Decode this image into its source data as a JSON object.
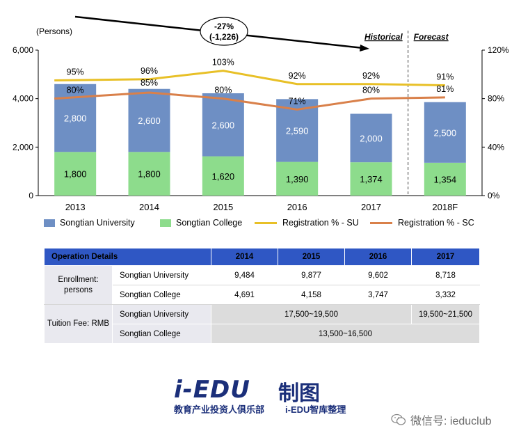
{
  "chart_data": {
    "type": "bar",
    "stacked": true,
    "unit_label": "(Persons)",
    "categories": [
      "2013",
      "2014",
      "2015",
      "2016",
      "2017",
      "2018F"
    ],
    "series": [
      {
        "name": "Songtian College",
        "color": "#8ddc8c",
        "values": [
          1800,
          1800,
          1620,
          1390,
          1374,
          1354
        ],
        "labels": [
          "1,800",
          "1,800",
          "1,620",
          "1,390",
          "1,374",
          "1,354"
        ]
      },
      {
        "name": "Songtian University",
        "color": "#6e8fc4",
        "values": [
          2800,
          2600,
          2600,
          2590,
          2000,
          2500
        ],
        "labels": [
          "2,800",
          "2,600",
          "2,600",
          "2,590",
          "2,000",
          "2,500"
        ]
      }
    ],
    "lines": [
      {
        "name": "Registration % - SU",
        "color": "#e8c027",
        "values": [
          95,
          96,
          103,
          92,
          92,
          91
        ],
        "labels": [
          "95%",
          "96%",
          "103%",
          "92%",
          "92%",
          "91%"
        ]
      },
      {
        "name": "Registration % - SC",
        "color": "#d9804a",
        "values": [
          80,
          85,
          80,
          71,
          80,
          81
        ],
        "labels": [
          "80%",
          "85%",
          "80%",
          "71%",
          "80%",
          "81%"
        ]
      }
    ],
    "ylim_left": [
      0,
      6000
    ],
    "yticks_left": [
      "0",
      "2,000",
      "4,000",
      "6,000"
    ],
    "ylim_right": [
      0,
      120
    ],
    "yticks_right": [
      "0%",
      "40%",
      "80%",
      "120%"
    ],
    "annotation": {
      "line1": "-27%",
      "line2": "(-1,226)"
    },
    "section_labels": {
      "historical": "Historical",
      "forecast": "Forecast"
    },
    "legend_position": "bottom"
  },
  "legend": {
    "items": [
      {
        "label": "Songtian University",
        "color": "#6e8fc4",
        "kind": "box"
      },
      {
        "label": "Songtian College",
        "color": "#8ddc8c",
        "kind": "box"
      },
      {
        "label": "Registration % - SU",
        "color": "#e8c027",
        "kind": "line"
      },
      {
        "label": "Registration % - SC",
        "color": "#d9804a",
        "kind": "line"
      }
    ]
  },
  "table": {
    "header": [
      "Operation Details",
      "2014",
      "2015",
      "2016",
      "2017"
    ],
    "enrollment_label_1": "Enrollment:",
    "enrollment_label_2": "persons",
    "tuition_label": "Tuition Fee: RMB",
    "rows": [
      {
        "name": "Songtian University",
        "values": [
          "9,484",
          "9,877",
          "9,602",
          "8,718"
        ]
      },
      {
        "name": "Songtian College",
        "values": [
          "4,691",
          "4,158",
          "3,747",
          "3,332"
        ]
      }
    ],
    "tuition_su_name": "Songtian University",
    "tuition_su_2014_2016": "17,500~19,500",
    "tuition_su_2017": "19,500~21,500",
    "tuition_sc_name": "Songtian College",
    "tuition_sc_all": "13,500~16,500"
  },
  "logo": {
    "brand": "i-EDU",
    "brand_cn": "制图",
    "sub_left": "教育产业投资人俱乐部",
    "sub_right": "i-EDU智库整理"
  },
  "wechat": {
    "text": "微信号: ieduclub",
    "icon": "wechat-icon"
  }
}
